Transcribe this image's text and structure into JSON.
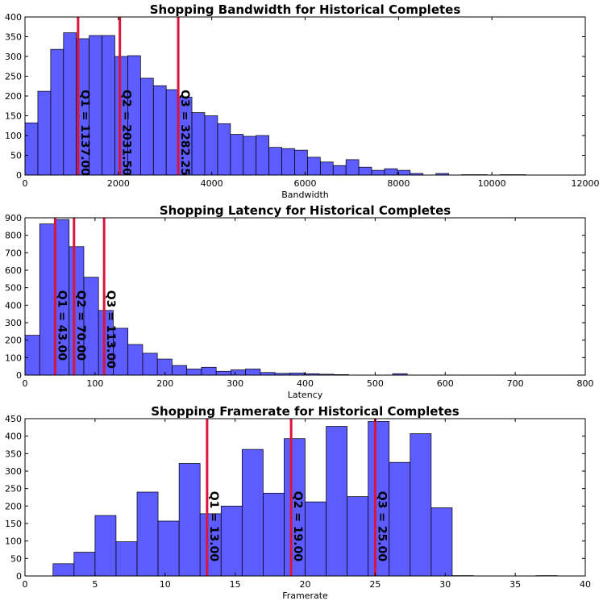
{
  "chart_data": [
    {
      "type": "bar",
      "title": "Shopping Bandwidth for Historical Completes",
      "xlabel": "Bandwidth",
      "ylabel": "",
      "xlim": [
        0,
        12000
      ],
      "ylim": [
        0,
        400
      ],
      "xticks": [
        0,
        2000,
        4000,
        6000,
        8000,
        10000,
        12000
      ],
      "yticks": [
        0,
        50,
        100,
        150,
        200,
        250,
        300,
        350,
        400
      ],
      "bar_color": "#3333ff",
      "line_color": "#dc143c",
      "bins": [
        {
          "x0": 0,
          "x1": 275,
          "count": 132
        },
        {
          "x0": 275,
          "x1": 550,
          "count": 212
        },
        {
          "x0": 550,
          "x1": 825,
          "count": 318
        },
        {
          "x0": 825,
          "x1": 1100,
          "count": 360
        },
        {
          "x0": 1100,
          "x1": 1375,
          "count": 345
        },
        {
          "x0": 1375,
          "x1": 1650,
          "count": 353
        },
        {
          "x0": 1650,
          "x1": 1925,
          "count": 353
        },
        {
          "x0": 1925,
          "x1": 2200,
          "count": 300
        },
        {
          "x0": 2200,
          "x1": 2475,
          "count": 302
        },
        {
          "x0": 2475,
          "x1": 2750,
          "count": 245
        },
        {
          "x0": 2750,
          "x1": 3025,
          "count": 226
        },
        {
          "x0": 3025,
          "x1": 3300,
          "count": 216
        },
        {
          "x0": 3300,
          "x1": 3575,
          "count": 197
        },
        {
          "x0": 3575,
          "x1": 3850,
          "count": 158
        },
        {
          "x0": 3850,
          "x1": 4125,
          "count": 150
        },
        {
          "x0": 4125,
          "x1": 4400,
          "count": 130
        },
        {
          "x0": 4400,
          "x1": 4675,
          "count": 103
        },
        {
          "x0": 4675,
          "x1": 4950,
          "count": 98
        },
        {
          "x0": 4950,
          "x1": 5225,
          "count": 100
        },
        {
          "x0": 5225,
          "x1": 5500,
          "count": 70
        },
        {
          "x0": 5500,
          "x1": 5775,
          "count": 67
        },
        {
          "x0": 5775,
          "x1": 6050,
          "count": 63
        },
        {
          "x0": 6050,
          "x1": 6325,
          "count": 45
        },
        {
          "x0": 6325,
          "x1": 6600,
          "count": 33
        },
        {
          "x0": 6600,
          "x1": 6875,
          "count": 24
        },
        {
          "x0": 6875,
          "x1": 7150,
          "count": 39
        },
        {
          "x0": 7150,
          "x1": 7425,
          "count": 20
        },
        {
          "x0": 7425,
          "x1": 7700,
          "count": 12
        },
        {
          "x0": 7700,
          "x1": 7975,
          "count": 16
        },
        {
          "x0": 7975,
          "x1": 8250,
          "count": 12
        },
        {
          "x0": 8250,
          "x1": 8525,
          "count": 4
        },
        {
          "x0": 8525,
          "x1": 8800,
          "count": 0
        },
        {
          "x0": 8800,
          "x1": 9075,
          "count": 4
        },
        {
          "x0": 9075,
          "x1": 9350,
          "count": 0
        },
        {
          "x0": 9350,
          "x1": 9625,
          "count": 1
        },
        {
          "x0": 9625,
          "x1": 9900,
          "count": 1
        },
        {
          "x0": 9900,
          "x1": 10175,
          "count": 0
        },
        {
          "x0": 10175,
          "x1": 10450,
          "count": 1
        },
        {
          "x0": 10450,
          "x1": 10725,
          "count": 1
        }
      ],
      "quartiles": [
        {
          "value": 1137.0,
          "label": "Q1 = 1137.00"
        },
        {
          "value": 2031.5,
          "label": "Q2 = 2031.50"
        },
        {
          "value": 3282.25,
          "label": "Q3 = 3282.25"
        }
      ],
      "label_y": 120
    },
    {
      "type": "bar",
      "title": "Shopping Latency for Historical Completes",
      "xlabel": "Latency",
      "ylabel": "",
      "xlim": [
        0,
        800
      ],
      "ylim": [
        0,
        900
      ],
      "xticks": [
        0,
        100,
        200,
        300,
        400,
        500,
        600,
        700,
        800
      ],
      "yticks": [
        0,
        100,
        200,
        300,
        400,
        500,
        600,
        700,
        800,
        900
      ],
      "bar_color": "#3333ff",
      "line_color": "#dc143c",
      "bins": [
        {
          "x0": 0,
          "x1": 21,
          "count": 228
        },
        {
          "x0": 21,
          "x1": 42,
          "count": 865
        },
        {
          "x0": 42,
          "x1": 63,
          "count": 890
        },
        {
          "x0": 63,
          "x1": 84,
          "count": 735
        },
        {
          "x0": 84,
          "x1": 105,
          "count": 560
        },
        {
          "x0": 105,
          "x1": 126,
          "count": 370
        },
        {
          "x0": 126,
          "x1": 147,
          "count": 268
        },
        {
          "x0": 147,
          "x1": 168,
          "count": 175
        },
        {
          "x0": 168,
          "x1": 189,
          "count": 125
        },
        {
          "x0": 189,
          "x1": 210,
          "count": 92
        },
        {
          "x0": 210,
          "x1": 231,
          "count": 55
        },
        {
          "x0": 231,
          "x1": 252,
          "count": 35
        },
        {
          "x0": 252,
          "x1": 273,
          "count": 45
        },
        {
          "x0": 273,
          "x1": 294,
          "count": 22
        },
        {
          "x0": 294,
          "x1": 315,
          "count": 30
        },
        {
          "x0": 315,
          "x1": 336,
          "count": 35
        },
        {
          "x0": 336,
          "x1": 357,
          "count": 15
        },
        {
          "x0": 357,
          "x1": 378,
          "count": 10
        },
        {
          "x0": 378,
          "x1": 399,
          "count": 12
        },
        {
          "x0": 399,
          "x1": 420,
          "count": 8
        },
        {
          "x0": 420,
          "x1": 441,
          "count": 5
        },
        {
          "x0": 441,
          "x1": 462,
          "count": 3
        },
        {
          "x0": 462,
          "x1": 483,
          "count": 0
        },
        {
          "x0": 483,
          "x1": 504,
          "count": 0
        },
        {
          "x0": 504,
          "x1": 525,
          "count": 0
        },
        {
          "x0": 525,
          "x1": 546,
          "count": 8
        },
        {
          "x0": 546,
          "x1": 567,
          "count": 0
        }
      ],
      "quartiles": [
        {
          "value": 43.0,
          "label": "Q1 = 43.00"
        },
        {
          "value": 70.0,
          "label": "Q2 = 70.00"
        },
        {
          "value": 113.0,
          "label": "Q3 = 113.00"
        }
      ],
      "label_y": 360
    },
    {
      "type": "bar",
      "title": "Shopping Framerate for Historical Completes",
      "xlabel": "Framerate",
      "ylabel": "",
      "xlim": [
        0,
        40
      ],
      "ylim": [
        0,
        450
      ],
      "xticks": [
        0,
        5,
        10,
        15,
        20,
        25,
        30,
        35,
        40
      ],
      "yticks": [
        0,
        50,
        100,
        150,
        200,
        250,
        300,
        350,
        400,
        450
      ],
      "bar_color": "#3333ff",
      "line_color": "#dc143c",
      "bins": [
        {
          "x0": 2.0,
          "x1": 3.5,
          "count": 35
        },
        {
          "x0": 3.5,
          "x1": 5.0,
          "count": 68
        },
        {
          "x0": 5.0,
          "x1": 6.5,
          "count": 173
        },
        {
          "x0": 6.5,
          "x1": 8.0,
          "count": 98
        },
        {
          "x0": 8.0,
          "x1": 9.5,
          "count": 240
        },
        {
          "x0": 9.5,
          "x1": 11.0,
          "count": 157
        },
        {
          "x0": 11.0,
          "x1": 12.5,
          "count": 322
        },
        {
          "x0": 12.5,
          "x1": 14.0,
          "count": 178
        },
        {
          "x0": 14.0,
          "x1": 15.5,
          "count": 200
        },
        {
          "x0": 15.5,
          "x1": 17.0,
          "count": 362
        },
        {
          "x0": 17.0,
          "x1": 18.5,
          "count": 237
        },
        {
          "x0": 18.5,
          "x1": 20.0,
          "count": 393
        },
        {
          "x0": 20.0,
          "x1": 21.5,
          "count": 212
        },
        {
          "x0": 21.5,
          "x1": 23.0,
          "count": 428
        },
        {
          "x0": 23.0,
          "x1": 24.5,
          "count": 227
        },
        {
          "x0": 24.5,
          "x1": 26.0,
          "count": 442
        },
        {
          "x0": 26.0,
          "x1": 27.5,
          "count": 325
        },
        {
          "x0": 27.5,
          "x1": 29.0,
          "count": 407
        },
        {
          "x0": 29.0,
          "x1": 30.5,
          "count": 195
        },
        {
          "x0": 30.5,
          "x1": 32.0,
          "count": 1
        },
        {
          "x0": 36.5,
          "x1": 38.0,
          "count": 1
        }
      ],
      "quartiles": [
        {
          "value": 13.0,
          "label": "Q1 = 13.00"
        },
        {
          "value": 19.0,
          "label": "Q2 = 19.00"
        },
        {
          "value": 25.0,
          "label": "Q3 = 25.00"
        }
      ],
      "label_y": 225
    }
  ]
}
